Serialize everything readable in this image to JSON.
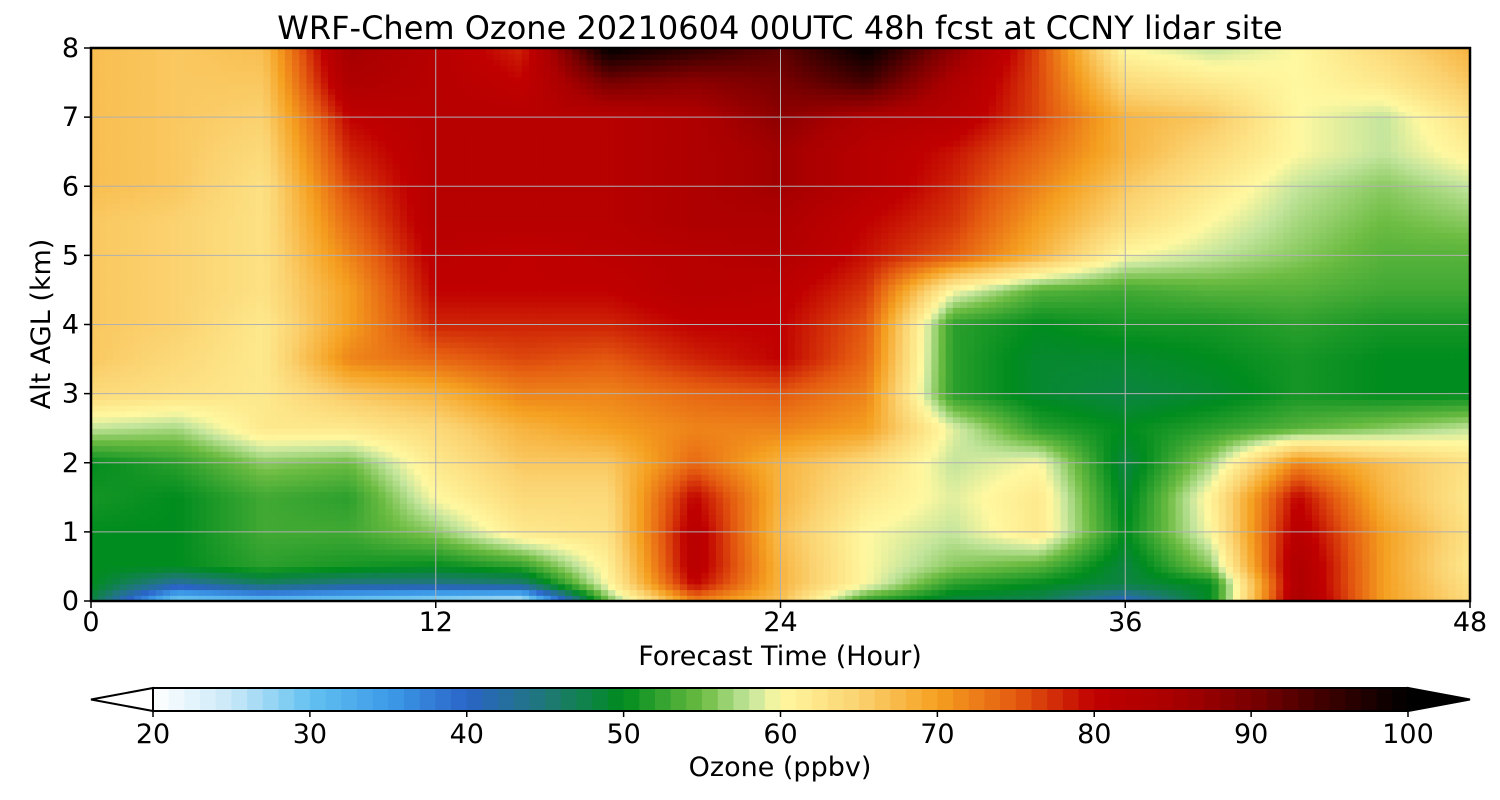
{
  "chart_data": {
    "type": "heatmap",
    "title": "WRF-Chem Ozone  20210604 00UTC 48h fcst at CCNY lidar site",
    "xlabel": "Forecast Time (Hour)",
    "ylabel": "Alt AGL (km)",
    "xlim": [
      0,
      48
    ],
    "ylim": [
      0,
      8
    ],
    "x_ticks": [
      0,
      12,
      24,
      36,
      48
    ],
    "y_ticks": [
      0,
      1,
      2,
      3,
      4,
      5,
      6,
      7,
      8
    ],
    "grid": true,
    "x_hours": [
      0,
      3,
      6,
      9,
      12,
      15,
      18,
      21,
      24,
      27,
      30,
      33,
      36,
      39,
      42,
      45,
      48
    ],
    "y_km": [
      0,
      0.25,
      0.5,
      1,
      1.5,
      2,
      2.5,
      3,
      3.5,
      4,
      4.5,
      5,
      5.5,
      6,
      6.5,
      7,
      7.5,
      8
    ],
    "ozone_ppbv": [
      [
        48,
        28,
        30,
        28,
        26,
        24,
        55,
        72,
        67,
        52,
        48,
        47,
        40,
        50,
        85,
        70,
        64
      ],
      [
        50,
        42,
        46,
        44,
        44,
        45,
        60,
        80,
        68,
        60,
        52,
        50,
        48,
        50,
        84,
        70,
        63
      ],
      [
        50,
        50,
        52,
        51,
        50,
        52,
        61,
        82,
        68,
        60,
        56,
        54,
        48,
        56,
        84,
        70,
        62
      ],
      [
        50,
        50,
        53,
        53,
        56,
        62,
        63,
        82,
        67,
        60,
        58,
        62,
        50,
        60,
        82,
        70,
        63
      ],
      [
        51,
        50,
        53,
        52,
        60,
        64,
        64,
        80,
        68,
        62,
        59,
        62,
        49,
        61,
        80,
        68,
        62
      ],
      [
        50,
        52,
        56,
        55,
        62,
        66,
        66,
        74,
        68,
        64,
        58,
        60,
        48,
        57,
        72,
        67,
        63
      ],
      [
        58,
        57,
        62,
        62,
        64,
        68,
        70,
        72,
        72,
        70,
        59,
        52,
        50,
        52,
        54,
        56,
        58
      ],
      [
        64,
        63,
        62,
        66,
        68,
        72,
        72,
        74,
        75,
        72,
        52,
        49,
        48,
        49,
        51,
        50,
        50
      ],
      [
        66,
        64,
        62,
        72,
        74,
        76,
        75,
        78,
        80,
        74,
        52,
        49,
        49,
        50,
        51,
        50,
        50
      ],
      [
        66,
        65,
        62,
        70,
        78,
        78,
        78,
        80,
        80,
        75,
        52,
        50,
        51,
        51,
        52,
        51,
        51
      ],
      [
        66,
        65,
        63,
        70,
        80,
        80,
        80,
        82,
        81,
        77,
        60,
        54,
        53,
        54,
        54,
        53,
        53
      ],
      [
        66,
        65,
        63,
        72,
        81,
        80,
        81,
        82,
        83,
        79,
        75,
        68,
        60,
        58,
        56,
        54,
        54
      ],
      [
        66,
        65,
        63,
        74,
        82,
        82,
        82,
        84,
        84,
        80,
        77,
        70,
        64,
        60,
        57,
        55,
        56
      ],
      [
        67,
        66,
        63,
        76,
        82,
        82,
        82,
        84,
        86,
        82,
        78,
        72,
        66,
        62,
        58,
        56,
        58
      ],
      [
        67,
        66,
        64,
        78,
        82,
        82,
        82,
        84,
        86,
        82,
        79,
        74,
        68,
        64,
        60,
        58,
        61
      ],
      [
        67,
        66,
        65,
        80,
        82,
        82,
        82,
        84,
        88,
        84,
        82,
        76,
        68,
        66,
        60,
        58,
        63
      ],
      [
        67,
        66,
        66,
        84,
        82,
        80,
        90,
        88,
        90,
        94,
        84,
        76,
        64,
        62,
        60,
        62,
        66
      ],
      [
        67,
        66,
        67,
        86,
        82,
        78,
        100,
        96,
        92,
        100,
        88,
        76,
        60,
        58,
        60,
        64,
        68
      ]
    ],
    "colorbar": {
      "label": "Ozone  (ppbv)",
      "ticks": [
        20,
        30,
        40,
        50,
        60,
        70,
        80,
        90,
        100
      ],
      "range": [
        20,
        100
      ],
      "extend": "both",
      "colors": {
        "20": "#ffffff",
        "25": "#c8e8f8",
        "30": "#64c1f0",
        "35": "#3d9be8",
        "40": "#2a64c8",
        "45": "#1f7878",
        "50": "#008c1e",
        "55": "#6cbc42",
        "58": "#c3e59c",
        "60": "#fff8a0",
        "65": "#fbd270",
        "70": "#f5a020",
        "75": "#e45a10",
        "80": "#c00000",
        "85": "#aa0000",
        "90": "#7a0000",
        "95": "#3a0000",
        "100": "#000000"
      }
    }
  }
}
